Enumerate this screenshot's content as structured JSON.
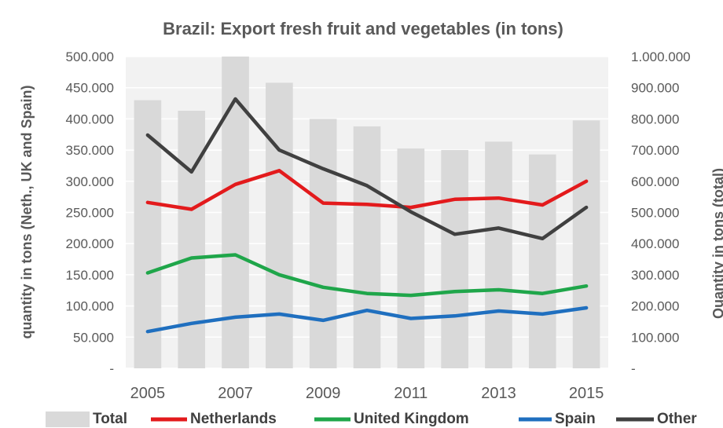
{
  "chart_data": {
    "type": "bar",
    "title": "Brazil: Export fresh fruit and vegetables (in tons)",
    "ylabel_left": "quantity in tons (Neth., UK and Spain)",
    "ylabel_right": "Quantity in tons (total)",
    "x": [
      2005,
      2006,
      2007,
      2008,
      2009,
      2010,
      2011,
      2012,
      2013,
      2014,
      2015
    ],
    "x_tick_labels": [
      "2005",
      "2007",
      "2009",
      "2011",
      "2013",
      "2015"
    ],
    "x_tick_values": [
      2005,
      2007,
      2009,
      2011,
      2013,
      2015
    ],
    "ylim_left": [
      0,
      500000
    ],
    "ylim_right": [
      0,
      1000000
    ],
    "y_ticks_left": [
      "-",
      "50.000",
      "100.000",
      "150.000",
      "200.000",
      "250.000",
      "300.000",
      "350.000",
      "400.000",
      "450.000",
      "500.000"
    ],
    "y_ticks_right": [
      "-",
      "100.000",
      "200.000",
      "300.000",
      "400.000",
      "500.000",
      "600.000",
      "700.000",
      "800.000",
      "900.000",
      "1.000.000"
    ],
    "legend_position": "bottom",
    "bars": {
      "name": "Total",
      "axis": "right",
      "color": "#d9d9d9",
      "values": [
        860000,
        826000,
        1000000,
        916000,
        800000,
        776000,
        705000,
        700000,
        727000,
        686000,
        795000
      ]
    },
    "series": [
      {
        "name": "Netherlands",
        "axis": "left",
        "color": "#e31a1c",
        "values": [
          266000,
          255000,
          295000,
          317000,
          265000,
          263000,
          258000,
          271000,
          273000,
          262000,
          300000
        ]
      },
      {
        "name": "United Kingdom",
        "axis": "left",
        "color": "#1fa64a",
        "values": [
          153000,
          177000,
          182000,
          150000,
          130000,
          120000,
          117000,
          123000,
          126000,
          120000,
          132000
        ]
      },
      {
        "name": "Spain",
        "axis": "left",
        "color": "#1f6fbf",
        "values": [
          59000,
          72000,
          82000,
          87000,
          77000,
          93000,
          80000,
          84000,
          92000,
          87000,
          97000
        ]
      },
      {
        "name": "Other",
        "axis": "left",
        "color": "#404040",
        "values": [
          374000,
          315000,
          432000,
          350000,
          320000,
          293000,
          251000,
          215000,
          225000,
          208000,
          258000
        ]
      }
    ]
  }
}
